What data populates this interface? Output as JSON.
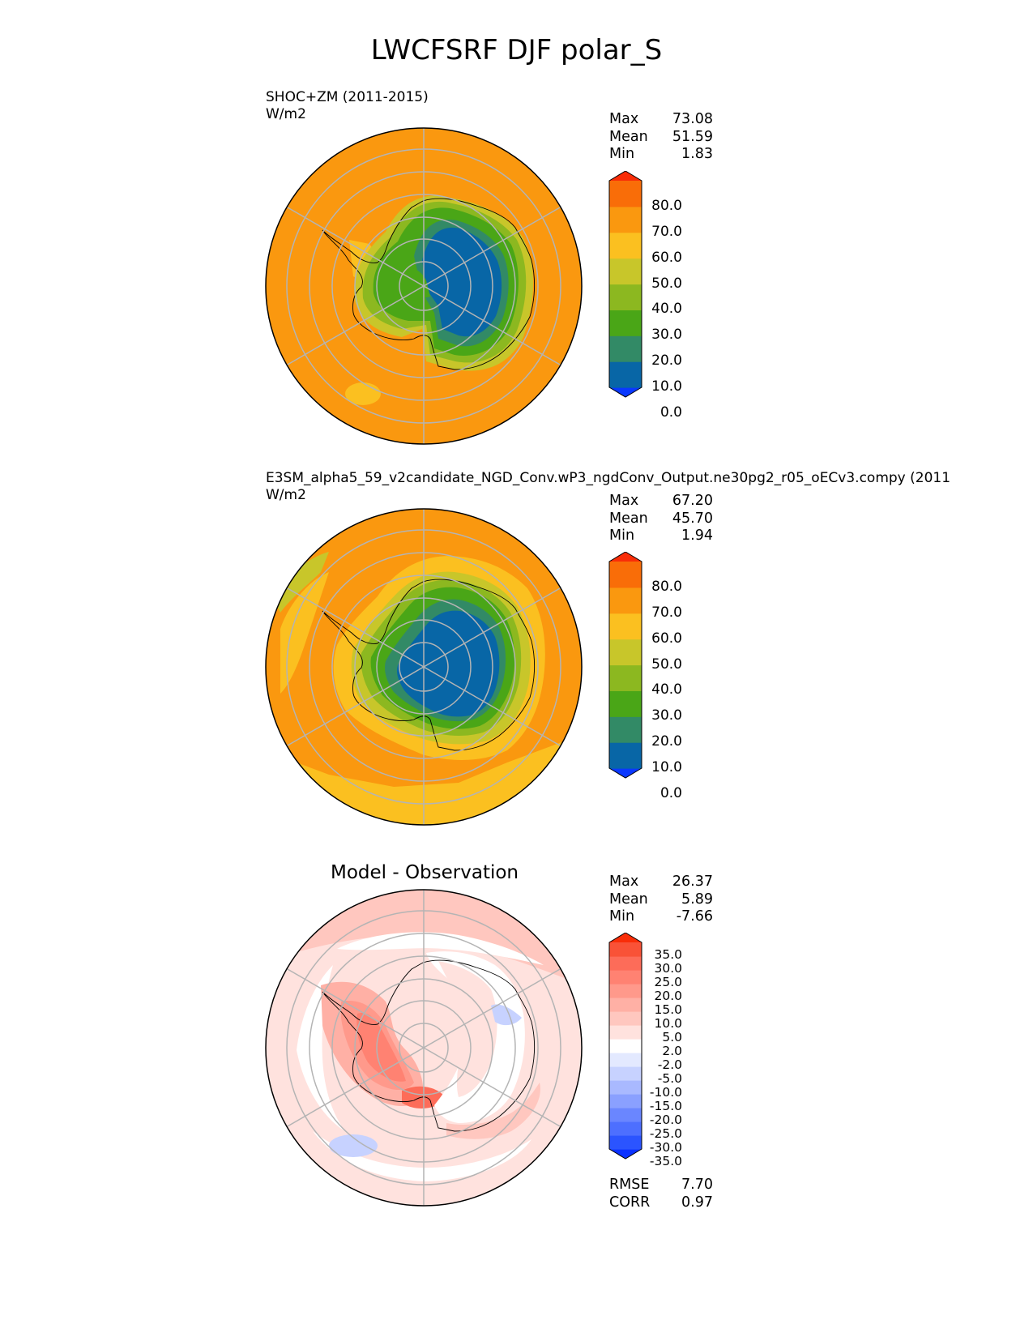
{
  "figure": {
    "title": "LWCFSRF DJF polar_S"
  },
  "colors": {
    "abs_levels": [
      "#0a38ff",
      "#0866a6",
      "#328a66",
      "#4aa617",
      "#8cb820",
      "#c8c62a",
      "#fbc020",
      "#fa980f",
      "#f96d08",
      "#f92d08"
    ],
    "diff_levels": [
      "#0a31ff",
      "#2b54ff",
      "#4d6fff",
      "#6a86ff",
      "#8aa0ff",
      "#a9b9ff",
      "#c7d2ff",
      "#e3e9ff",
      "#ffffff",
      "#ffe2de",
      "#ffc7bf",
      "#ffb0a5",
      "#ff998b",
      "#ff8272",
      "#fd6c59",
      "#f95237",
      "#f92d08"
    ],
    "grid": "#b4b4b4",
    "coast": "#000000"
  },
  "panels": [
    {
      "name": "test",
      "title_line1": "SHOC+ZM (2011-2015)",
      "title_line2": "W/m2",
      "stats": [
        {
          "label": "Max",
          "value": "73.08"
        },
        {
          "label": "Mean",
          "value": "51.59"
        },
        {
          "label": "Min",
          "value": "1.83"
        }
      ],
      "colorbar_ticks": [
        "80.0",
        "70.0",
        "60.0",
        "50.0",
        "40.0",
        "30.0",
        "20.0",
        "10.0",
        "0.0"
      ]
    },
    {
      "name": "reference",
      "title_line1": "E3SM_alpha5_59_v2candidate_NGD_Conv.wP3_ngdConv_Output.ne30pg2_r05_oECv3.compy (2011",
      "title_line2": "W/m2",
      "stats": [
        {
          "label": "Max",
          "value": "67.20"
        },
        {
          "label": "Mean",
          "value": "45.70"
        },
        {
          "label": "Min",
          "value": "1.94"
        }
      ],
      "colorbar_ticks": [
        "80.0",
        "70.0",
        "60.0",
        "50.0",
        "40.0",
        "30.0",
        "20.0",
        "10.0",
        "0.0"
      ]
    },
    {
      "name": "difference",
      "title": "Model - Observation",
      "stats": [
        {
          "label": "Max",
          "value": "26.37"
        },
        {
          "label": "Mean",
          "value": "5.89"
        },
        {
          "label": "Min",
          "value": "-7.66"
        }
      ],
      "colorbar_ticks": [
        "35.0",
        "30.0",
        "25.0",
        "20.0",
        "15.0",
        "10.0",
        "5.0",
        "2.0",
        "-2.0",
        "-5.0",
        "-10.0",
        "-15.0",
        "-20.0",
        "-25.0",
        "-30.0",
        "-35.0"
      ],
      "metrics": [
        {
          "label": "RMSE",
          "value": "7.70"
        },
        {
          "label": "CORR",
          "value": "0.97"
        }
      ]
    }
  ],
  "chart_data": [
    {
      "type": "heatmap",
      "projection": "south-polar-stereographic",
      "title": "SHOC+ZM (2011-2015)",
      "units": "W/m2",
      "stats": {
        "max": 73.08,
        "mean": 51.59,
        "min": 1.83
      },
      "contour_levels": [
        0,
        10,
        20,
        30,
        40,
        50,
        60,
        70,
        80
      ],
      "colorbar_extend": "both",
      "description_values": {
        "ocean_typical": 65,
        "antarctic_plateau": 5
      }
    },
    {
      "type": "heatmap",
      "projection": "south-polar-stereographic",
      "title": "E3SM_alpha5_59_v2candidate_NGD_Conv.wP3_ngdConv_Output.ne30pg2_r05_oECv3.compy (2011",
      "units": "W/m2",
      "stats": {
        "max": 67.2,
        "mean": 45.7,
        "min": 1.94
      },
      "contour_levels": [
        0,
        10,
        20,
        30,
        40,
        50,
        60,
        70,
        80
      ],
      "colorbar_extend": "both",
      "description_values": {
        "ocean_typical": 60,
        "antarctic_plateau": 5
      }
    },
    {
      "type": "heatmap",
      "projection": "south-polar-stereographic",
      "title": "Model - Observation",
      "stats": {
        "max": 26.37,
        "mean": 5.89,
        "min": -7.66
      },
      "metrics": {
        "rmse": 7.7,
        "corr": 0.97
      },
      "contour_levels": [
        -35,
        -30,
        -25,
        -20,
        -15,
        -10,
        -5,
        -2,
        2,
        5,
        10,
        15,
        20,
        25,
        30,
        35
      ],
      "colorbar_extend": "both"
    }
  ]
}
